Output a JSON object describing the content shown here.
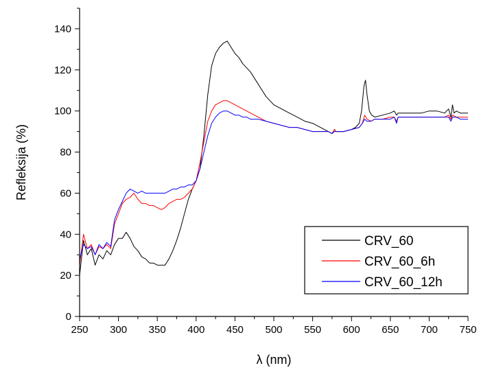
{
  "chart_data": {
    "type": "line",
    "title": "",
    "xlabel": "λ (nm)",
    "ylabel": "Refleksija (%)",
    "xlim": [
      250,
      750
    ],
    "ylim": [
      0,
      150
    ],
    "x_ticks": [
      250,
      300,
      350,
      400,
      450,
      500,
      550,
      600,
      650,
      700,
      750
    ],
    "y_ticks": [
      0,
      20,
      40,
      60,
      80,
      100,
      120,
      140
    ],
    "grid": false,
    "legend_position": "lower-right",
    "series": [
      {
        "name": "CRV_60",
        "color": "#000000",
        "x": [
          250,
          255,
          260,
          265,
          270,
          275,
          280,
          285,
          290,
          295,
          300,
          305,
          310,
          315,
          320,
          325,
          330,
          335,
          340,
          345,
          350,
          355,
          360,
          365,
          370,
          375,
          380,
          385,
          390,
          395,
          400,
          405,
          410,
          415,
          420,
          425,
          430,
          435,
          440,
          445,
          450,
          455,
          460,
          465,
          470,
          475,
          480,
          490,
          500,
          510,
          520,
          530,
          540,
          550,
          560,
          570,
          575,
          578,
          580,
          585,
          590,
          600,
          605,
          610,
          613,
          616,
          618,
          620,
          623,
          626,
          630,
          640,
          650,
          655,
          658,
          660,
          670,
          680,
          690,
          700,
          710,
          720,
          725,
          728,
          730,
          732,
          735,
          740,
          750
        ],
        "y": [
          20,
          37,
          30,
          33,
          25,
          30,
          28,
          32,
          30,
          35,
          38,
          38,
          41,
          38,
          34,
          32,
          29,
          28,
          26,
          26,
          25,
          25,
          25,
          28,
          32,
          37,
          43,
          50,
          57,
          62,
          66,
          72,
          88,
          108,
          122,
          128,
          131,
          133,
          134,
          131,
          128,
          126,
          123,
          121,
          119,
          116,
          113,
          107,
          103,
          101,
          99,
          97,
          95,
          94,
          92,
          90,
          89,
          91,
          90,
          90,
          90,
          91,
          92,
          94,
          100,
          112,
          115,
          108,
          100,
          98,
          97,
          98,
          99,
          100,
          98,
          99,
          99,
          99,
          99,
          100,
          100,
          99,
          101,
          97,
          103,
          99,
          100,
          99,
          99
        ]
      },
      {
        "name": "CRV_60_6h",
        "color": "#ff0000",
        "x": [
          250,
          255,
          260,
          265,
          270,
          275,
          280,
          285,
          290,
          295,
          300,
          305,
          310,
          315,
          320,
          325,
          330,
          335,
          340,
          345,
          350,
          355,
          360,
          365,
          370,
          375,
          380,
          385,
          390,
          395,
          400,
          405,
          410,
          415,
          420,
          425,
          430,
          435,
          440,
          445,
          450,
          455,
          460,
          465,
          470,
          480,
          490,
          500,
          510,
          520,
          530,
          540,
          550,
          560,
          570,
          575,
          578,
          580,
          590,
          600,
          610,
          614,
          617,
          620,
          625,
          630,
          640,
          650,
          655,
          658,
          660,
          670,
          680,
          690,
          700,
          710,
          720,
          725,
          728,
          730,
          735,
          740,
          750
        ],
        "y": [
          25,
          40,
          33,
          35,
          30,
          34,
          33,
          35,
          33,
          45,
          50,
          55,
          57,
          58,
          60,
          57,
          55,
          55,
          54,
          54,
          53,
          52,
          53,
          55,
          56,
          57,
          57,
          58,
          60,
          62,
          66,
          75,
          85,
          95,
          100,
          103,
          104,
          105,
          105,
          104,
          103,
          102,
          101,
          100,
          99,
          97,
          95,
          94,
          93,
          92,
          92,
          91,
          90,
          90,
          90,
          89,
          91,
          90,
          90,
          91,
          92,
          94,
          98,
          96,
          95,
          96,
          96,
          97,
          97,
          95,
          97,
          97,
          97,
          97,
          97,
          97,
          97,
          98,
          96,
          98,
          97,
          97,
          97
        ]
      },
      {
        "name": "CRV_60_12h",
        "color": "#0000ff",
        "x": [
          250,
          255,
          260,
          265,
          270,
          275,
          280,
          285,
          290,
          295,
          300,
          305,
          310,
          315,
          320,
          325,
          330,
          335,
          340,
          345,
          350,
          355,
          360,
          365,
          370,
          375,
          380,
          385,
          390,
          395,
          400,
          405,
          410,
          415,
          420,
          425,
          430,
          435,
          440,
          445,
          450,
          455,
          460,
          465,
          470,
          480,
          490,
          500,
          510,
          520,
          530,
          540,
          550,
          560,
          570,
          575,
          578,
          580,
          590,
          600,
          610,
          614,
          617,
          620,
          625,
          630,
          640,
          650,
          655,
          658,
          660,
          670,
          680,
          690,
          700,
          710,
          720,
          725,
          728,
          730,
          735,
          740,
          750
        ],
        "y": [
          28,
          35,
          33,
          34,
          30,
          35,
          33,
          36,
          34,
          47,
          52,
          56,
          60,
          62,
          61,
          60,
          61,
          60,
          60,
          60,
          60,
          60,
          60,
          61,
          62,
          62,
          63,
          63,
          64,
          64,
          66,
          72,
          80,
          88,
          94,
          97,
          99,
          100,
          100,
          99,
          98,
          98,
          97,
          97,
          96,
          96,
          95,
          94,
          93,
          92,
          92,
          91,
          90,
          90,
          90,
          89,
          90,
          90,
          90,
          91,
          92,
          94,
          96,
          95,
          95,
          96,
          96,
          96,
          97,
          94,
          97,
          97,
          97,
          97,
          97,
          97,
          97,
          97,
          95,
          97,
          97,
          96,
          96
        ]
      }
    ]
  }
}
